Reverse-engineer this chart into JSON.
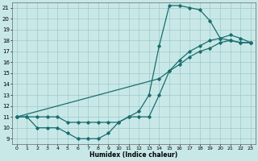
{
  "background_color": "#c8e8e8",
  "grid_color": "#a0c8c8",
  "line_color": "#1a6e6e",
  "xlabel": "Humidex (Indice chaleur)",
  "xlim": [
    -0.5,
    23.5
  ],
  "ylim": [
    8.5,
    21.5
  ],
  "xticks": [
    0,
    1,
    2,
    3,
    4,
    5,
    6,
    7,
    8,
    9,
    10,
    11,
    12,
    13,
    14,
    15,
    16,
    17,
    18,
    19,
    20,
    21,
    22,
    23
  ],
  "yticks": [
    9,
    10,
    11,
    12,
    13,
    14,
    15,
    16,
    17,
    18,
    19,
    20,
    21
  ],
  "series": [
    {
      "x": [
        0,
        1,
        2,
        3,
        4,
        5,
        6,
        7,
        8,
        9,
        10,
        11,
        12,
        13,
        14,
        15,
        16,
        17,
        18,
        19,
        20,
        21,
        22,
        23
      ],
      "y": [
        11,
        11,
        10,
        10,
        10,
        9.5,
        9,
        9,
        9,
        9.5,
        10.5,
        11,
        11.5,
        13,
        17.5,
        21.2,
        21.2,
        21.0,
        20.8,
        19.8,
        18.2,
        18.0,
        17.8,
        17.8
      ]
    },
    {
      "x": [
        0,
        1,
        2,
        3,
        4,
        5,
        6,
        7,
        8,
        9,
        10,
        11,
        12,
        13,
        14,
        15,
        16,
        17,
        18,
        19,
        20,
        21,
        22,
        23
      ],
      "y": [
        11,
        11,
        11,
        11,
        11,
        10.5,
        10.5,
        10.5,
        10.5,
        10.5,
        10.5,
        11,
        11,
        11,
        13,
        15.2,
        16.2,
        17,
        17.5,
        18,
        18.2,
        18.5,
        18.2,
        17.8
      ]
    },
    {
      "x": [
        0,
        14,
        15,
        16,
        17,
        18,
        19,
        20,
        21,
        22,
        23
      ],
      "y": [
        11,
        14.5,
        15.2,
        15.8,
        16.5,
        17.0,
        17.3,
        17.8,
        18.0,
        17.8,
        17.8
      ]
    }
  ]
}
